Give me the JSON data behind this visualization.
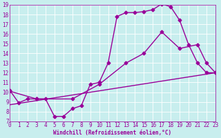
{
  "xlabel": "Windchill (Refroidissement éolien,°C)",
  "bg_color": "#c8eeee",
  "line_color": "#990099",
  "grid_color": "#ffffff",
  "xmin": 0,
  "xmax": 23,
  "ymin": 7,
  "ymax": 19,
  "yticks": [
    7,
    8,
    9,
    10,
    11,
    12,
    13,
    14,
    15,
    16,
    17,
    18,
    19
  ],
  "xticks": [
    0,
    1,
    2,
    3,
    4,
    5,
    6,
    7,
    8,
    9,
    10,
    11,
    12,
    13,
    14,
    15,
    16,
    17,
    18,
    19,
    20,
    21,
    22,
    23
  ],
  "line1_x": [
    0,
    1,
    2,
    3,
    4,
    5,
    6,
    7,
    8,
    9,
    10,
    11,
    12,
    13,
    14,
    15,
    16,
    17,
    18,
    19,
    20,
    21,
    22,
    23
  ],
  "line1_y": [
    10.2,
    8.9,
    9.3,
    9.3,
    9.3,
    7.5,
    7.5,
    8.3,
    8.6,
    10.8,
    11.0,
    13.0,
    17.8,
    18.2,
    18.2,
    18.3,
    18.5,
    19.1,
    18.8,
    17.4,
    14.9,
    13.0,
    12.0,
    12.0
  ],
  "line2_x": [
    0,
    3,
    7,
    10,
    13,
    15,
    17,
    19,
    21,
    22,
    23
  ],
  "line2_y": [
    10.1,
    9.3,
    9.3,
    10.8,
    13.0,
    14.0,
    16.2,
    14.5,
    14.9,
    13.0,
    12.0
  ],
  "line3_x": [
    0,
    23
  ],
  "line3_y": [
    8.7,
    12.0
  ],
  "marker": "D",
  "marker_size": 2.5,
  "linewidth": 1.0,
  "tick_fontsize": 5.5,
  "xlabel_fontsize": 5.5
}
